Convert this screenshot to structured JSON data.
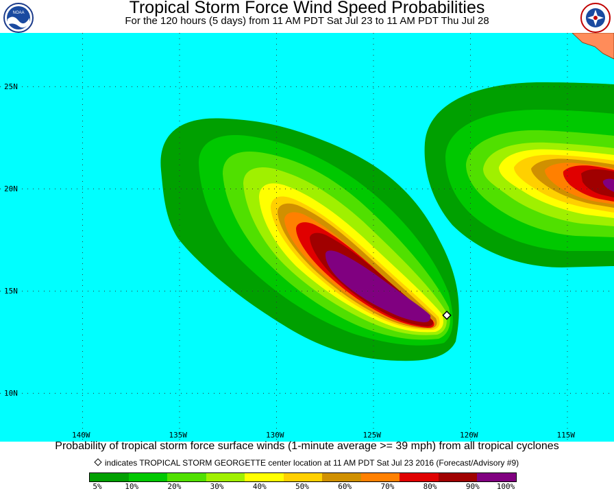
{
  "header": {
    "title": "Tropical Storm Force Wind Speed Probabilities",
    "subtitle": "For the 120 hours (5 days) from 11 AM PDT Sat Jul 23 to 11 AM PDT Thu Jul 28"
  },
  "logos": {
    "left": "noaa-logo",
    "right": "nws-logo"
  },
  "map": {
    "ocean_color": "#00ffff",
    "land_color": "#ff8c5a",
    "lat_labels": [
      "25N",
      "20N",
      "15N",
      "10N"
    ],
    "lon_labels": [
      "140W",
      "135W",
      "130W",
      "125W",
      "120W",
      "115W"
    ],
    "lat_values": [
      25,
      20,
      15,
      10
    ],
    "lon_values": [
      140,
      135,
      130,
      125,
      120,
      115
    ],
    "storm_marker": {
      "lat": 13.8,
      "lon": 121.2
    }
  },
  "footer": {
    "caption": "Probability of tropical storm force surface winds (1-minute average >= 39 mph) from all tropical cyclones",
    "note": "indicates TROPICAL STORM GEORGETTE center location at 11 AM PDT Sat Jul 23 2016 (Forecast/Advisory #9)"
  },
  "legend": {
    "labels": [
      "5%",
      "10%",
      "20%",
      "30%",
      "40%",
      "50%",
      "60%",
      "70%",
      "80%",
      "90%",
      "100%"
    ],
    "colors": [
      "#00a000",
      "#00c800",
      "#50e000",
      "#a0f000",
      "#ffff00",
      "#ffd000",
      "#d09000",
      "#ff8000",
      "#e00000",
      "#a00000",
      "#800080"
    ]
  }
}
